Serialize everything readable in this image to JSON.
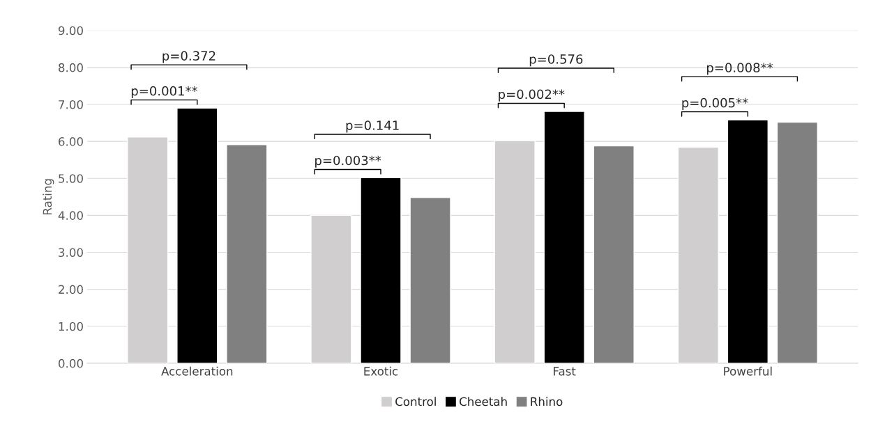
{
  "chart_data": {
    "type": "bar",
    "ylabel": "Rating",
    "categories": [
      "Acceleration",
      "Exotic",
      "Fast",
      "Powerful"
    ],
    "series": [
      {
        "name": "Control",
        "color": "#d0cece",
        "values": [
          6.12,
          4.0,
          6.02,
          5.84
        ]
      },
      {
        "name": "Cheetah",
        "color": "#000000",
        "values": [
          6.9,
          5.02,
          6.81,
          6.58
        ]
      },
      {
        "name": "Rhino",
        "color": "#808080",
        "values": [
          5.91,
          4.48,
          5.88,
          6.52
        ]
      }
    ],
    "ylim": [
      0,
      9
    ],
    "yticks": [
      {
        "value": 0,
        "label": "0.00"
      },
      {
        "value": 1,
        "label": "1.00"
      },
      {
        "value": 2,
        "label": "2.00"
      },
      {
        "value": 3,
        "label": "3.00"
      },
      {
        "value": 4,
        "label": "4.00"
      },
      {
        "value": 5,
        "label": "5.00"
      },
      {
        "value": 6,
        "label": "6.00"
      },
      {
        "value": 7,
        "label": "7.00"
      },
      {
        "value": 8,
        "label": "8.00"
      },
      {
        "value": 9,
        "label": "9.00"
      }
    ],
    "grid": "y",
    "legend": "bottom",
    "annotations": [
      "p=0.001**",
      "p=0.372",
      "p=0.003**",
      "p=0.141",
      "p=0.002**",
      "p=0.576",
      "p=0.005**",
      "p=0.008**"
    ]
  }
}
